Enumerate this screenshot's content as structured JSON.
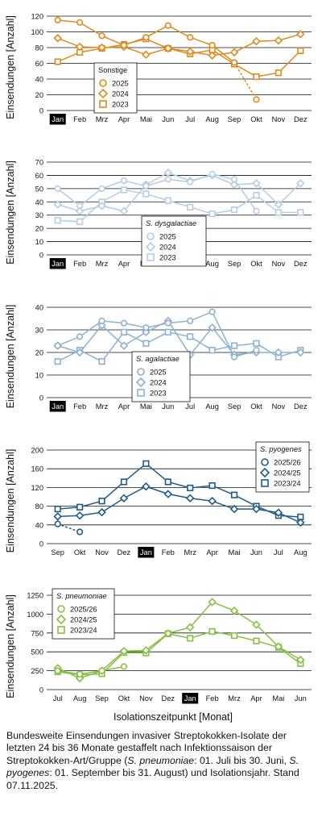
{
  "xlabel": "Isolationszeitpunkt [Monat]",
  "caption": [
    {
      "t": "Bundesweite Einsendungen invasiver Streptokokken-Isolate der letzten 24 bis 36 Monate gestaffelt nach Infektionssaison der Streptokokken-Art/Gruppe (",
      "i": false
    },
    {
      "t": "S. pneumoniae",
      "i": true
    },
    {
      "t": ": 01. Juli bis 30. Juni, ",
      "i": false
    },
    {
      "t": "S. pyogenes",
      "i": true
    },
    {
      "t": ": 01. September bis 31. August) und Isolationsjahr. Stand 07.11.2025.",
      "i": false
    }
  ],
  "chart_data": [
    {
      "type": "line",
      "ylabel": "Einsendungen [Anzahl]",
      "categories": [
        "Jan",
        "Feb",
        "Mrz",
        "Apr",
        "Mai",
        "Jun",
        "Jul",
        "Aug",
        "Sep",
        "Okt",
        "Nov",
        "Dez"
      ],
      "highlight_category": "Jan",
      "ylim": [
        0,
        120
      ],
      "yticks": [
        0,
        20,
        40,
        60,
        80,
        100,
        120
      ],
      "legend": {
        "title": "Sonstige",
        "title_italic": false,
        "position": "bottom-center"
      },
      "color": "#e08a1e",
      "series": [
        {
          "name": "2025",
          "marker": "circle",
          "values": [
            115,
            112,
            95,
            83,
            93,
            108,
            93,
            83,
            61,
            null,
            null,
            null
          ],
          "dashed_to": {
            "index": 9,
            "value": 14
          }
        },
        {
          "name": "2024",
          "marker": "diamond",
          "values": [
            92,
            81,
            80,
            81,
            71,
            79,
            75,
            70,
            74,
            88,
            89,
            97
          ]
        },
        {
          "name": "2023",
          "marker": "square",
          "values": [
            62,
            74,
            79,
            84,
            91,
            79,
            72,
            77,
            59,
            43,
            48,
            76
          ]
        }
      ]
    },
    {
      "type": "line",
      "ylabel": "Einsendungen [Anzahl]",
      "categories": [
        "Jan",
        "Feb",
        "Mrz",
        "Apr",
        "Mai",
        "Jun",
        "Jul",
        "Aug",
        "Sep",
        "Okt",
        "Nov",
        "Dez"
      ],
      "highlight_category": "Jan",
      "ylim": [
        0,
        70
      ],
      "yticks": [
        0,
        10,
        20,
        30,
        40,
        50,
        60,
        70
      ],
      "legend": {
        "title": "S. dysgalactiae",
        "title_italic": true,
        "position": "bottom-center"
      },
      "color": "#b4cde4",
      "series": [
        {
          "name": "2025",
          "marker": "circle",
          "values": [
            50,
            37,
            50,
            56,
            52,
            57,
            55,
            61,
            57,
            33,
            null,
            null
          ]
        },
        {
          "name": "2024",
          "marker": "diamond",
          "values": [
            38,
            33,
            37,
            33,
            53,
            62,
            56,
            60,
            53,
            54,
            38,
            54
          ]
        },
        {
          "name": "2023",
          "marker": "square",
          "values": [
            26,
            25,
            40,
            49,
            46,
            41,
            36,
            31,
            34,
            45,
            32,
            32
          ]
        }
      ]
    },
    {
      "type": "line",
      "ylabel": "Einsendungen [Anzahl]",
      "categories": [
        "Jan",
        "Feb",
        "Mrz",
        "Apr",
        "Mai",
        "Jun",
        "Jul",
        "Aug",
        "Sep",
        "Okt",
        "Nov",
        "Dez"
      ],
      "highlight_category": "Jan",
      "ylim": [
        0,
        40
      ],
      "yticks": [
        0,
        10,
        20,
        30,
        40
      ],
      "legend": {
        "title": "S. agalactiae",
        "title_italic": true,
        "position": "bottom-center"
      },
      "color": "#8fb0d0",
      "series": [
        {
          "name": "2025",
          "marker": "circle",
          "values": [
            23,
            27,
            34,
            33,
            31,
            33,
            34,
            38,
            18,
            21,
            null,
            null
          ]
        },
        {
          "name": "2024",
          "marker": "diamond",
          "values": [
            23,
            20,
            32,
            23,
            29,
            34,
            19,
            31,
            19,
            20,
            20,
            20
          ]
        },
        {
          "name": "2023",
          "marker": "square",
          "values": [
            16,
            21,
            16,
            29,
            24,
            29,
            27,
            21,
            23,
            24,
            18,
            21
          ]
        }
      ]
    },
    {
      "type": "line",
      "ylabel": "Einsendungen [Anzahl]",
      "categories": [
        "Sep",
        "Okt",
        "Nov",
        "Dez",
        "Jan",
        "Feb",
        "Mrz",
        "Apr",
        "Mai",
        "Jun",
        "Jul",
        "Aug"
      ],
      "highlight_category": "Jan",
      "ylim": [
        0,
        200
      ],
      "yticks": [
        0,
        40,
        80,
        120,
        160,
        200
      ],
      "legend": {
        "title": "S. pyogenes",
        "title_italic": true,
        "position": "top-right"
      },
      "color": "#1f5a8a",
      "series": [
        {
          "name": "2025/26",
          "marker": "circle",
          "values": [
            42,
            null,
            null,
            null,
            null,
            null,
            null,
            null,
            null,
            null,
            null,
            null
          ],
          "dashed_to": {
            "index": 1,
            "value": 25
          }
        },
        {
          "name": "2024/25",
          "marker": "diamond",
          "values": [
            58,
            60,
            67,
            97,
            122,
            106,
            97,
            91,
            74,
            74,
            66,
            45
          ]
        },
        {
          "name": "2023/24",
          "marker": "square",
          "values": [
            74,
            78,
            91,
            132,
            171,
            132,
            119,
            124,
            104,
            80,
            60,
            57
          ]
        }
      ]
    },
    {
      "type": "line",
      "ylabel": "Einsendungen [Anzahl]",
      "categories": [
        "Jul",
        "Aug",
        "Sep",
        "Okt",
        "Nov",
        "Dez",
        "Jan",
        "Feb",
        "Mrz",
        "Apr",
        "Mai",
        "Jun"
      ],
      "highlight_category": "Jan",
      "ylim": [
        0,
        1250
      ],
      "yticks": [
        0,
        250,
        500,
        750,
        1000,
        1250
      ],
      "legend": {
        "title": "S. pneumoniae",
        "title_italic": true,
        "position": "top-left"
      },
      "color": "#86c146",
      "series": [
        {
          "name": "2025/26",
          "marker": "circle",
          "values": [
            250,
            205,
            250,
            305,
            null,
            null,
            null,
            null,
            null,
            null,
            null,
            null
          ]
        },
        {
          "name": "2024/25",
          "marker": "diamond",
          "values": [
            285,
            150,
            250,
            510,
            520,
            745,
            825,
            1160,
            1045,
            860,
            570,
            395
          ]
        },
        {
          "name": "2023/24",
          "marker": "square",
          "values": [
            235,
            195,
            210,
            490,
            485,
            740,
            680,
            770,
            715,
            645,
            560,
            345
          ]
        }
      ]
    }
  ]
}
